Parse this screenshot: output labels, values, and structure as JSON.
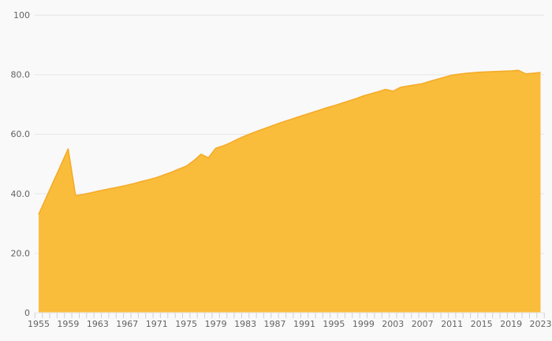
{
  "chart_data": {
    "type": "area",
    "title": "",
    "xlabel": "",
    "ylabel": "",
    "x_range": [
      1955,
      2023
    ],
    "ylim": [
      0,
      100
    ],
    "grid": true,
    "legend": false,
    "y_tick_values": [
      0,
      20,
      40,
      60,
      80,
      100
    ],
    "y_tick_labels": [
      "0",
      "20.0",
      "40.0",
      "60.0",
      "80.0",
      "100"
    ],
    "x_tick_label_years": [
      1955,
      1959,
      1963,
      1967,
      1971,
      1975,
      1979,
      1983,
      1987,
      1991,
      1995,
      1999,
      2003,
      2007,
      2011,
      2015,
      2019,
      2023
    ],
    "minor_ticks_every_year": true,
    "x": [
      1955,
      1956,
      1957,
      1958,
      1959,
      1960,
      1961,
      1962,
      1963,
      1964,
      1965,
      1966,
      1967,
      1968,
      1969,
      1970,
      1971,
      1972,
      1973,
      1974,
      1975,
      1976,
      1977,
      1978,
      1979,
      1980,
      1981,
      1982,
      1983,
      1984,
      1985,
      1986,
      1987,
      1988,
      1989,
      1990,
      1991,
      1992,
      1993,
      1994,
      1995,
      1996,
      1997,
      1998,
      1999,
      2000,
      2001,
      2002,
      2003,
      2004,
      2005,
      2006,
      2007,
      2008,
      2009,
      2010,
      2011,
      2012,
      2013,
      2014,
      2015,
      2016,
      2017,
      2018,
      2019,
      2020,
      2021,
      2022,
      2023
    ],
    "values": [
      33.0,
      38.5,
      44.0,
      49.5,
      55.0,
      39.3,
      39.7,
      40.2,
      40.8,
      41.3,
      41.8,
      42.3,
      42.8,
      43.4,
      44.1,
      44.7,
      45.4,
      46.3,
      47.2,
      48.2,
      49.2,
      51.0,
      53.2,
      52.0,
      55.2,
      56.0,
      57.1,
      58.3,
      59.4,
      60.4,
      61.3,
      62.2,
      63.1,
      64.0,
      64.8,
      65.6,
      66.4,
      67.2,
      68.0,
      68.8,
      69.5,
      70.3,
      71.1,
      71.9,
      72.8,
      73.5,
      74.2,
      75.0,
      74.4,
      75.7,
      76.1,
      76.5,
      76.9,
      77.7,
      78.4,
      79.1,
      79.8,
      80.1,
      80.4,
      80.6,
      80.8,
      80.9,
      81.0,
      81.1,
      81.2,
      81.4,
      80.2,
      80.4,
      80.7
    ]
  },
  "style": {
    "background_color": "#f9f9f9",
    "area_fill_color": "#fabd3b",
    "line_color": "#f5ab27",
    "gridline_color": "#e6e6e6",
    "tick_color": "#c9d3dd",
    "axis_label_color": "#636363"
  }
}
